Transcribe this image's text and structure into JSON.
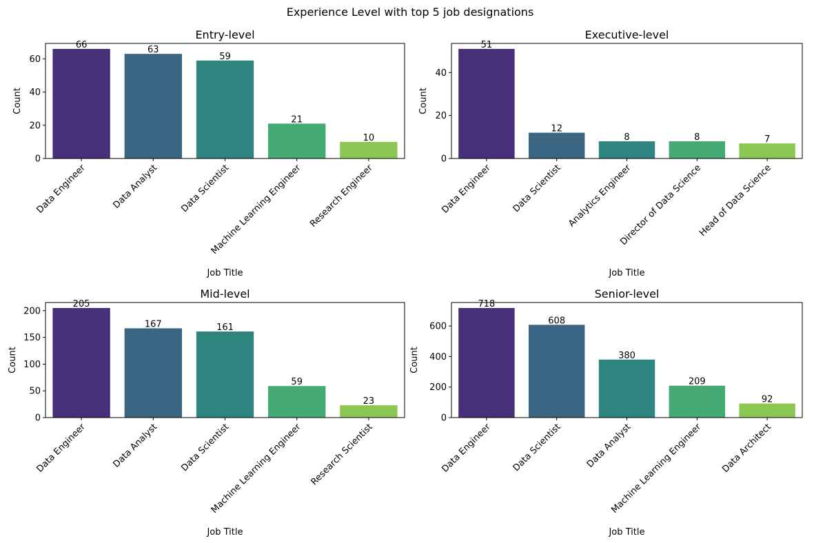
{
  "suptitle": "Experience Level with top 5 job designations",
  "colors": [
    "#482f7a",
    "#3b6683",
    "#2e847e",
    "#44a973",
    "#8cc653"
  ],
  "chart_data": [
    {
      "type": "bar",
      "title": "Entry-level",
      "xlabel": "Job Title",
      "ylabel": "Count",
      "categories": [
        "Data Engineer",
        "Data Analyst",
        "Data Scientist",
        "Machine Learning Engineer",
        "Research Engineer"
      ],
      "values": [
        66,
        63,
        59,
        21,
        10
      ],
      "ylim": [
        0,
        69.3
      ],
      "yticks": [
        0,
        20,
        40,
        60
      ]
    },
    {
      "type": "bar",
      "title": "Executive-level",
      "xlabel": "Job Title",
      "ylabel": "Count",
      "categories": [
        "Data Engineer",
        "Data Scientist",
        "Analytics Engineer",
        "Director of Data Science",
        "Head of Data Science"
      ],
      "values": [
        51,
        12,
        8,
        8,
        7
      ],
      "ylim": [
        0,
        53.55
      ],
      "yticks": [
        0,
        20,
        40
      ]
    },
    {
      "type": "bar",
      "title": "Mid-level",
      "xlabel": "Job Title",
      "ylabel": "Count",
      "categories": [
        "Data Engineer",
        "Data Analyst",
        "Data Scientist",
        "Machine Learning Engineer",
        "Research Scientist"
      ],
      "values": [
        205,
        167,
        161,
        59,
        23
      ],
      "ylim": [
        0,
        215.25
      ],
      "yticks": [
        0,
        50,
        100,
        150,
        200
      ]
    },
    {
      "type": "bar",
      "title": "Senior-level",
      "xlabel": "Job Title",
      "ylabel": "Count",
      "categories": [
        "Data Engineer",
        "Data Scientist",
        "Data Analyst",
        "Machine Learning Engineer",
        "Data Architect"
      ],
      "values": [
        718,
        608,
        380,
        209,
        92
      ],
      "ylim": [
        0,
        753.9
      ],
      "yticks": [
        0,
        200,
        400,
        600
      ]
    }
  ]
}
